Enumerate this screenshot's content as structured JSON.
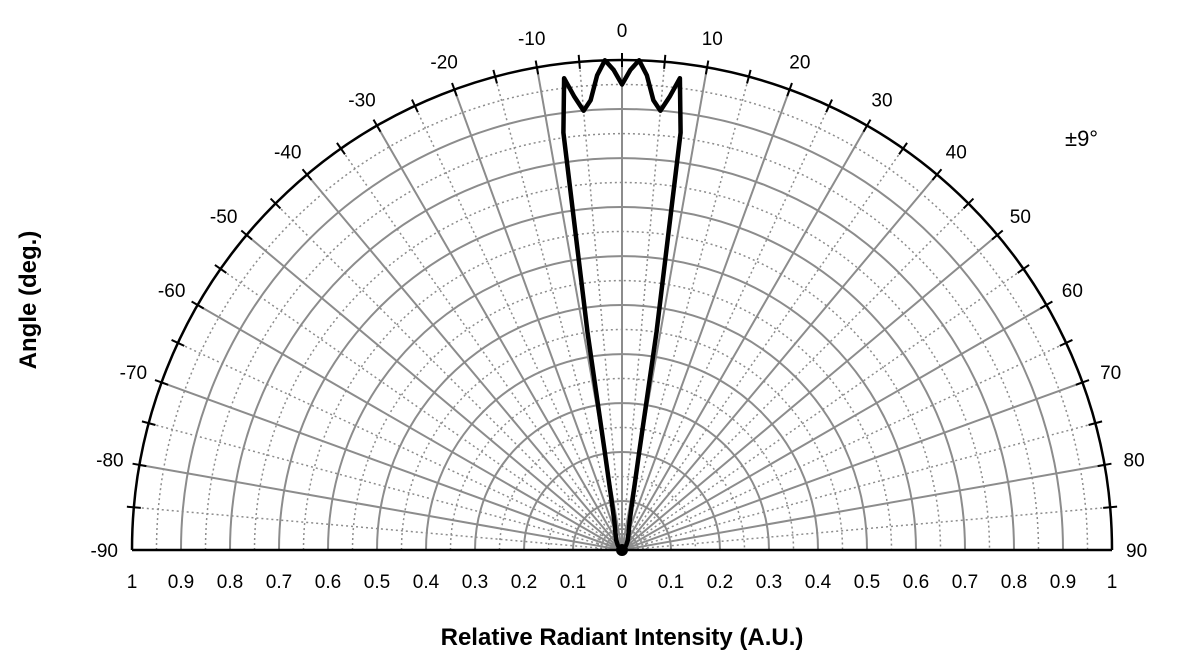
{
  "chart_data": {
    "type": "polar",
    "title": "",
    "xlabel": "Relative Radiant Intensity (A.U.)",
    "ylabel": "Angle (deg.)",
    "annotation": "±9°",
    "angle_range": [
      -90,
      90
    ],
    "radial_range": [
      0,
      1
    ],
    "angle_ticks": [
      -90,
      -80,
      -70,
      -60,
      -50,
      -40,
      -30,
      -20,
      -10,
      0,
      10,
      20,
      30,
      40,
      50,
      60,
      70,
      80,
      90
    ],
    "radial_tick_labels": [
      "1",
      "0.9",
      "0.8",
      "0.7",
      "0.6",
      "0.5",
      "0.4",
      "0.3",
      "0.2",
      "0.1",
      "0",
      "0.1",
      "0.2",
      "0.3",
      "0.4",
      "0.5",
      "0.6",
      "0.7",
      "0.8",
      "0.9",
      "1"
    ],
    "grid": true,
    "series": [
      {
        "angles": [
          -90,
          -60,
          -40,
          -30,
          -20,
          -15,
          -12,
          -10,
          -9,
          -8,
          -7,
          -6,
          -5,
          -4,
          -3,
          -2,
          -1,
          0,
          1,
          2,
          3,
          4,
          5,
          6,
          7,
          8,
          9,
          10,
          12,
          15,
          20,
          30,
          40,
          60,
          90
        ],
        "values": [
          0,
          0.006,
          0.014,
          0.024,
          0.04,
          0.06,
          0.1,
          0.2,
          0.45,
          0.86,
          0.97,
          0.93,
          0.9,
          0.92,
          0.97,
          1.0,
          0.98,
          0.95,
          0.98,
          1.0,
          0.97,
          0.92,
          0.9,
          0.93,
          0.97,
          0.86,
          0.45,
          0.2,
          0.1,
          0.06,
          0.04,
          0.024,
          0.014,
          0.006,
          0
        ]
      }
    ]
  }
}
